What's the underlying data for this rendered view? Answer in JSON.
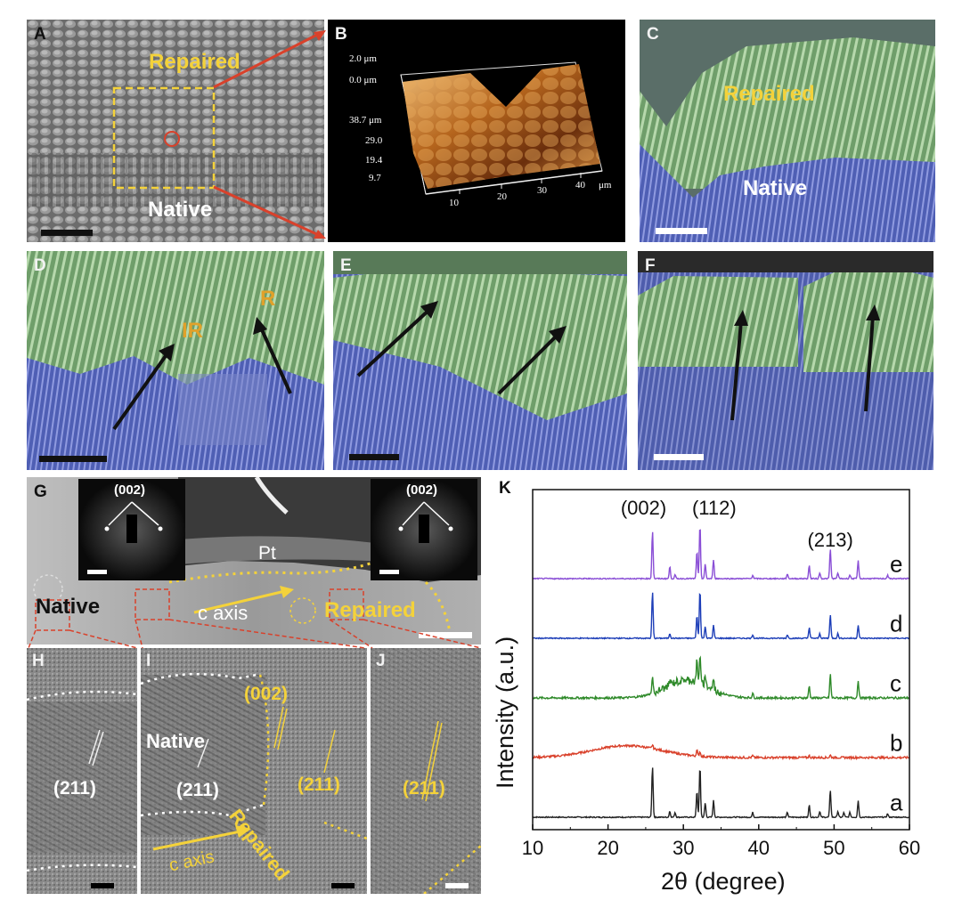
{
  "panels": {
    "A": {
      "label": "A",
      "text_top": "Repaired",
      "text_bottom": "Native"
    },
    "B": {
      "label": "B",
      "z_labels": [
        "2.0 μm",
        "0.0 μm"
      ],
      "y_labels": [
        "38.7 μm",
        "29.0",
        "19.4",
        "9.7"
      ],
      "x_labels": [
        "10",
        "20",
        "30",
        "40",
        "μm"
      ]
    },
    "C": {
      "label": "C",
      "text_top": "Repaired",
      "text_bottom": "Native"
    },
    "D": {
      "label": "D",
      "text_ir": "IR",
      "text_r": "R"
    },
    "E": {
      "label": "E"
    },
    "F": {
      "label": "F"
    },
    "G": {
      "label": "G",
      "saed_left": "(002)",
      "saed_right": "(002)",
      "pt": "Pt",
      "native": "Native",
      "c_axis": "c axis",
      "repaired": "Repaired"
    },
    "H": {
      "label": "H",
      "plane": "(211)"
    },
    "I": {
      "label": "I",
      "native": "Native",
      "plane_002": "(002)",
      "plane_211_left": "(211)",
      "plane_211_right": "(211)",
      "repaired": "Repaired",
      "c_axis": "c axis"
    },
    "J": {
      "label": "J",
      "plane": "(211)"
    }
  },
  "chart_data": {
    "type": "line",
    "panel_label": "K",
    "xlabel": "2θ (degree)",
    "ylabel": "Intensity (a.u.)",
    "xlim": [
      10,
      60
    ],
    "xticks": [
      "10",
      "20",
      "30",
      "40",
      "50",
      "60"
    ],
    "peak_labels": [
      {
        "text": "(002)",
        "x": 25.9
      },
      {
        "text": "(112)",
        "x": 32.2
      },
      {
        "text": "(213)",
        "x": 49.5
      }
    ],
    "series": [
      {
        "name": "a",
        "color": "#222222",
        "baseline": 0.0,
        "peaks": [
          [
            25.9,
            0.86
          ],
          [
            28.2,
            0.1
          ],
          [
            28.9,
            0.08
          ],
          [
            31.8,
            0.44
          ],
          [
            32.2,
            0.86
          ],
          [
            32.9,
            0.24
          ],
          [
            34.0,
            0.28
          ],
          [
            39.2,
            0.08
          ],
          [
            43.8,
            0.08
          ],
          [
            46.7,
            0.2
          ],
          [
            48.1,
            0.1
          ],
          [
            49.5,
            0.46
          ],
          [
            50.5,
            0.1
          ],
          [
            51.3,
            0.08
          ],
          [
            52.1,
            0.08
          ],
          [
            53.2,
            0.28
          ],
          [
            57.1,
            0.06
          ]
        ]
      },
      {
        "name": "b",
        "color": "#d9412b",
        "baseline": 1.0,
        "hump": {
          "center": 22.5,
          "width": 6.5,
          "height": 0.2
        },
        "peaks": [
          [
            25.9,
            0.06
          ],
          [
            31.8,
            0.1
          ],
          [
            32.2,
            0.08
          ],
          [
            39.2,
            0.03
          ],
          [
            46.7,
            0.03
          ],
          [
            49.5,
            0.04
          ]
        ]
      },
      {
        "name": "c",
        "color": "#2f8a2a",
        "baseline": 2.0,
        "hump": {
          "center": 30.5,
          "width": 4.0,
          "height": 0.3
        },
        "peaks": [
          [
            25.9,
            0.26
          ],
          [
            28.2,
            0.08
          ],
          [
            31.8,
            0.36
          ],
          [
            32.2,
            0.48
          ],
          [
            32.9,
            0.2
          ],
          [
            34.0,
            0.18
          ],
          [
            39.2,
            0.08
          ],
          [
            46.7,
            0.2
          ],
          [
            49.5,
            0.4
          ],
          [
            53.2,
            0.3
          ]
        ]
      },
      {
        "name": "d",
        "color": "#1e3fb8",
        "baseline": 3.0,
        "peaks": [
          [
            25.9,
            0.78
          ],
          [
            28.2,
            0.08
          ],
          [
            31.8,
            0.38
          ],
          [
            32.2,
            0.82
          ],
          [
            32.9,
            0.2
          ],
          [
            34.0,
            0.22
          ],
          [
            39.2,
            0.06
          ],
          [
            43.8,
            0.06
          ],
          [
            46.7,
            0.18
          ],
          [
            48.1,
            0.08
          ],
          [
            49.5,
            0.4
          ],
          [
            50.5,
            0.08
          ],
          [
            53.2,
            0.22
          ]
        ]
      },
      {
        "name": "e",
        "color": "#8a4fd6",
        "baseline": 4.0,
        "peaks": [
          [
            25.9,
            0.8
          ],
          [
            28.2,
            0.2
          ],
          [
            28.9,
            0.06
          ],
          [
            31.8,
            0.46
          ],
          [
            32.2,
            0.9
          ],
          [
            32.9,
            0.24
          ],
          [
            34.0,
            0.32
          ],
          [
            39.2,
            0.06
          ],
          [
            43.8,
            0.08
          ],
          [
            46.7,
            0.22
          ],
          [
            48.1,
            0.1
          ],
          [
            49.5,
            0.5
          ],
          [
            50.5,
            0.1
          ],
          [
            52.1,
            0.06
          ],
          [
            53.2,
            0.3
          ],
          [
            57.1,
            0.06
          ]
        ]
      }
    ]
  }
}
